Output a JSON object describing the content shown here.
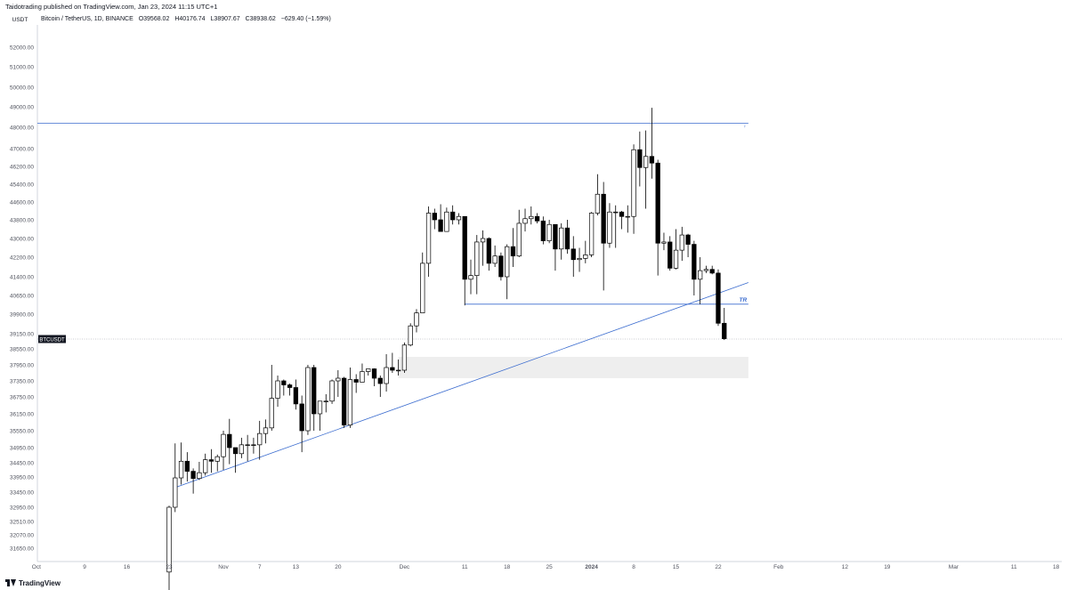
{
  "header": {
    "published": "Taidotrading published on TradingView.com, Jan 23, 2024 11:15 UTC+1",
    "pair_tag": "USDT",
    "symbol": "Bitcoin / TetherUS, 1D, BINANCE",
    "open": "O39568.02",
    "high": "H40176.74",
    "low": "L38907.67",
    "close": "C38938.62",
    "change": "−629.40 (−1.59%)"
  },
  "footer": {
    "brand": "TradingView"
  },
  "chart_data": {
    "type": "candlestick",
    "symbol_label": "BTCUSDT",
    "price_ticks": [
      {
        "v": 52000,
        "l": "52000.00"
      },
      {
        "v": 51000,
        "l": "51000.00"
      },
      {
        "v": 50000,
        "l": "50000.00"
      },
      {
        "v": 49000,
        "l": "49000.00"
      },
      {
        "v": 48000,
        "l": "48000.00"
      },
      {
        "v": 47000,
        "l": "47000.00"
      },
      {
        "v": 46200,
        "l": "46200.00"
      },
      {
        "v": 45400,
        "l": "45400.00"
      },
      {
        "v": 44600,
        "l": "44600.00"
      },
      {
        "v": 43800,
        "l": "43800.00"
      },
      {
        "v": 43000,
        "l": "43000.00"
      },
      {
        "v": 42200,
        "l": "42200.00"
      },
      {
        "v": 41400,
        "l": "41400.00"
      },
      {
        "v": 40650,
        "l": "40650.00"
      },
      {
        "v": 39900,
        "l": "39900.00"
      },
      {
        "v": 39150,
        "l": "39150.00"
      },
      {
        "v": 38550,
        "l": "38550.00"
      },
      {
        "v": 37950,
        "l": "37950.00"
      },
      {
        "v": 37350,
        "l": "37350.00"
      },
      {
        "v": 36750,
        "l": "36750.00"
      },
      {
        "v": 36150,
        "l": "36150.00"
      },
      {
        "v": 35550,
        "l": "35550.00"
      },
      {
        "v": 34950,
        "l": "34950.00"
      },
      {
        "v": 34450,
        "l": "34450.00"
      },
      {
        "v": 33950,
        "l": "33950.00"
      },
      {
        "v": 33450,
        "l": "33450.00"
      },
      {
        "v": 32950,
        "l": "32950.00"
      },
      {
        "v": 32510,
        "l": "32510.00"
      },
      {
        "v": 32070,
        "l": "32070.00"
      },
      {
        "v": 31650,
        "l": "31650.00"
      }
    ],
    "time_ticks": [
      {
        "d": "2023-10-01",
        "l": "Oct"
      },
      {
        "d": "2023-10-09",
        "l": "9"
      },
      {
        "d": "2023-10-16",
        "l": "16"
      },
      {
        "d": "2023-10-23",
        "l": "23"
      },
      {
        "d": "2023-11-01",
        "l": "Nov"
      },
      {
        "d": "2023-11-07",
        "l": "7"
      },
      {
        "d": "2023-11-13",
        "l": "13"
      },
      {
        "d": "2023-11-20",
        "l": "20"
      },
      {
        "d": "2023-12-01",
        "l": "Dec"
      },
      {
        "d": "2023-12-11",
        "l": "11"
      },
      {
        "d": "2023-12-18",
        "l": "18"
      },
      {
        "d": "2023-12-25",
        "l": "25"
      },
      {
        "d": "2024-01-01",
        "l": "2024"
      },
      {
        "d": "2024-01-08",
        "l": "8"
      },
      {
        "d": "2024-01-15",
        "l": "15"
      },
      {
        "d": "2024-01-22",
        "l": "22"
      },
      {
        "d": "2024-02-01",
        "l": "Feb"
      },
      {
        "d": "2024-02-12",
        "l": "12"
      },
      {
        "d": "2024-02-19",
        "l": "19"
      },
      {
        "d": "2024-03-01",
        "l": "Mar"
      },
      {
        "d": "2024-03-11",
        "l": "11"
      },
      {
        "d": "2024-03-18",
        "l": "18"
      }
    ],
    "last_price": 38938.62,
    "candles": [
      {
        "d": "2023-10-23",
        "o": 30900,
        "h": 33000,
        "l": 30300,
        "c": 32950
      },
      {
        "d": "2023-10-24",
        "o": 32950,
        "h": 35100,
        "l": 32800,
        "c": 33920
      },
      {
        "d": "2023-10-25",
        "o": 33920,
        "h": 35130,
        "l": 33700,
        "c": 34500
      },
      {
        "d": "2023-10-26",
        "o": 34500,
        "h": 34800,
        "l": 33800,
        "c": 34150
      },
      {
        "d": "2023-10-27",
        "o": 34150,
        "h": 34250,
        "l": 33400,
        "c": 33900
      },
      {
        "d": "2023-10-28",
        "o": 33900,
        "h": 34480,
        "l": 33850,
        "c": 34100
      },
      {
        "d": "2023-10-29",
        "o": 34100,
        "h": 34750,
        "l": 34000,
        "c": 34550
      },
      {
        "d": "2023-10-30",
        "o": 34550,
        "h": 34900,
        "l": 34100,
        "c": 34500
      },
      {
        "d": "2023-10-31",
        "o": 34500,
        "h": 34720,
        "l": 34150,
        "c": 34650
      },
      {
        "d": "2023-11-01",
        "o": 34650,
        "h": 35550,
        "l": 34200,
        "c": 35420
      },
      {
        "d": "2023-11-02",
        "o": 35420,
        "h": 35970,
        "l": 34400,
        "c": 34950
      },
      {
        "d": "2023-11-03",
        "o": 34950,
        "h": 34950,
        "l": 34100,
        "c": 34750
      },
      {
        "d": "2023-11-04",
        "o": 34750,
        "h": 35300,
        "l": 34600,
        "c": 35050
      },
      {
        "d": "2023-11-05",
        "o": 35050,
        "h": 35400,
        "l": 34500,
        "c": 35050
      },
      {
        "d": "2023-11-06",
        "o": 35050,
        "h": 35300,
        "l": 34750,
        "c": 35050
      },
      {
        "d": "2023-11-07",
        "o": 35050,
        "h": 35900,
        "l": 34550,
        "c": 35450
      },
      {
        "d": "2023-11-08",
        "o": 35450,
        "h": 35950,
        "l": 35100,
        "c": 35650
      },
      {
        "d": "2023-11-09",
        "o": 35650,
        "h": 37950,
        "l": 35550,
        "c": 36700
      },
      {
        "d": "2023-11-10",
        "o": 36700,
        "h": 37550,
        "l": 36400,
        "c": 37350
      },
      {
        "d": "2023-11-11",
        "o": 37350,
        "h": 37400,
        "l": 36800,
        "c": 37200
      },
      {
        "d": "2023-11-12",
        "o": 37200,
        "h": 37250,
        "l": 36800,
        "c": 37100
      },
      {
        "d": "2023-11-13",
        "o": 37100,
        "h": 37400,
        "l": 36300,
        "c": 36500
      },
      {
        "d": "2023-11-14",
        "o": 36500,
        "h": 36800,
        "l": 34800,
        "c": 35550
      },
      {
        "d": "2023-11-15",
        "o": 35550,
        "h": 37950,
        "l": 35400,
        "c": 37850
      },
      {
        "d": "2023-11-16",
        "o": 37850,
        "h": 37950,
        "l": 35550,
        "c": 36150
      },
      {
        "d": "2023-11-17",
        "o": 36150,
        "h": 36500,
        "l": 35550,
        "c": 36600
      },
      {
        "d": "2023-11-18",
        "o": 36600,
        "h": 36850,
        "l": 36200,
        "c": 36600
      },
      {
        "d": "2023-11-19",
        "o": 36600,
        "h": 37400,
        "l": 36500,
        "c": 37350
      },
      {
        "d": "2023-11-20",
        "o": 37350,
        "h": 37750,
        "l": 36750,
        "c": 37450
      },
      {
        "d": "2023-11-21",
        "o": 37450,
        "h": 37500,
        "l": 35650,
        "c": 35750
      },
      {
        "d": "2023-11-22",
        "o": 35750,
        "h": 37850,
        "l": 35650,
        "c": 37400
      },
      {
        "d": "2023-11-23",
        "o": 37400,
        "h": 37600,
        "l": 36900,
        "c": 37300
      },
      {
        "d": "2023-11-24",
        "o": 37300,
        "h": 38000,
        "l": 37300,
        "c": 37700
      },
      {
        "d": "2023-11-25",
        "o": 37700,
        "h": 37800,
        "l": 37550,
        "c": 37800
      },
      {
        "d": "2023-11-26",
        "o": 37800,
        "h": 37820,
        "l": 37150,
        "c": 37450
      },
      {
        "d": "2023-11-27",
        "o": 37450,
        "h": 37550,
        "l": 36750,
        "c": 37250
      },
      {
        "d": "2023-11-28",
        "o": 37250,
        "h": 38350,
        "l": 36950,
        "c": 37850
      },
      {
        "d": "2023-11-29",
        "o": 37850,
        "h": 38400,
        "l": 37650,
        "c": 37750
      },
      {
        "d": "2023-11-30",
        "o": 37750,
        "h": 38150,
        "l": 37550,
        "c": 37750
      },
      {
        "d": "2023-12-01",
        "o": 37750,
        "h": 38800,
        "l": 37650,
        "c": 38700
      },
      {
        "d": "2023-12-02",
        "o": 38700,
        "h": 39550,
        "l": 38650,
        "c": 39450
      },
      {
        "d": "2023-12-03",
        "o": 39450,
        "h": 40100,
        "l": 39200,
        "c": 39950
      },
      {
        "d": "2023-12-04",
        "o": 39950,
        "h": 42400,
        "l": 39950,
        "c": 41950
      },
      {
        "d": "2023-12-05",
        "o": 41950,
        "h": 44400,
        "l": 41400,
        "c": 44100
      },
      {
        "d": "2023-12-06",
        "o": 44100,
        "h": 44300,
        "l": 43400,
        "c": 43800
      },
      {
        "d": "2023-12-07",
        "o": 43800,
        "h": 44500,
        "l": 43400,
        "c": 43300
      },
      {
        "d": "2023-12-08",
        "o": 43300,
        "h": 44350,
        "l": 43300,
        "c": 44150
      },
      {
        "d": "2023-12-09",
        "o": 44150,
        "h": 44450,
        "l": 43600,
        "c": 43800
      },
      {
        "d": "2023-12-10",
        "o": 43800,
        "h": 44100,
        "l": 43600,
        "c": 43950
      },
      {
        "d": "2023-12-11",
        "o": 43950,
        "h": 43950,
        "l": 40250,
        "c": 41300
      },
      {
        "d": "2023-12-12",
        "o": 41300,
        "h": 42100,
        "l": 40700,
        "c": 41450
      },
      {
        "d": "2023-12-13",
        "o": 41450,
        "h": 43150,
        "l": 40700,
        "c": 42850
      },
      {
        "d": "2023-12-14",
        "o": 42850,
        "h": 43350,
        "l": 41850,
        "c": 43000
      },
      {
        "d": "2023-12-15",
        "o": 43000,
        "h": 43050,
        "l": 41650,
        "c": 41950
      },
      {
        "d": "2023-12-16",
        "o": 41950,
        "h": 42700,
        "l": 41800,
        "c": 42250
      },
      {
        "d": "2023-12-17",
        "o": 42250,
        "h": 42400,
        "l": 41250,
        "c": 41400
      },
      {
        "d": "2023-12-18",
        "o": 41400,
        "h": 42750,
        "l": 40500,
        "c": 42650
      },
      {
        "d": "2023-12-19",
        "o": 42650,
        "h": 43450,
        "l": 41800,
        "c": 42250
      },
      {
        "d": "2023-12-20",
        "o": 42250,
        "h": 44250,
        "l": 42200,
        "c": 43650
      },
      {
        "d": "2023-12-21",
        "o": 43650,
        "h": 44300,
        "l": 43300,
        "c": 43850
      },
      {
        "d": "2023-12-22",
        "o": 43850,
        "h": 44400,
        "l": 43600,
        "c": 43950
      },
      {
        "d": "2023-12-23",
        "o": 43950,
        "h": 44100,
        "l": 43650,
        "c": 43750
      },
      {
        "d": "2023-12-24",
        "o": 43750,
        "h": 43950,
        "l": 42750,
        "c": 42900
      },
      {
        "d": "2023-12-25",
        "o": 42900,
        "h": 43800,
        "l": 42800,
        "c": 43600
      },
      {
        "d": "2023-12-26",
        "o": 43600,
        "h": 43600,
        "l": 41650,
        "c": 42550
      },
      {
        "d": "2023-12-27",
        "o": 42550,
        "h": 43650,
        "l": 42100,
        "c": 43450
      },
      {
        "d": "2023-12-28",
        "o": 43450,
        "h": 43800,
        "l": 42350,
        "c": 42550
      },
      {
        "d": "2023-12-29",
        "o": 42550,
        "h": 43100,
        "l": 41400,
        "c": 42100
      },
      {
        "d": "2023-12-30",
        "o": 42100,
        "h": 42600,
        "l": 41600,
        "c": 42150
      },
      {
        "d": "2023-12-31",
        "o": 42150,
        "h": 42900,
        "l": 41950,
        "c": 42300
      },
      {
        "d": "2024-01-01",
        "o": 42300,
        "h": 44150,
        "l": 42200,
        "c": 44100
      },
      {
        "d": "2024-01-02",
        "o": 44100,
        "h": 45850,
        "l": 44000,
        "c": 44950
      },
      {
        "d": "2024-01-03",
        "o": 44950,
        "h": 45500,
        "l": 40850,
        "c": 42800
      },
      {
        "d": "2024-01-04",
        "o": 42800,
        "h": 44550,
        "l": 42600,
        "c": 44150
      },
      {
        "d": "2024-01-05",
        "o": 44150,
        "h": 44450,
        "l": 42600,
        "c": 44150
      },
      {
        "d": "2024-01-06",
        "o": 44150,
        "h": 44200,
        "l": 43400,
        "c": 43950
      },
      {
        "d": "2024-01-07",
        "o": 43950,
        "h": 44450,
        "l": 43250,
        "c": 43950
      },
      {
        "d": "2024-01-08",
        "o": 43950,
        "h": 47200,
        "l": 43200,
        "c": 46950
      },
      {
        "d": "2024-01-09",
        "o": 46950,
        "h": 47800,
        "l": 45300,
        "c": 46150
      },
      {
        "d": "2024-01-10",
        "o": 46150,
        "h": 47850,
        "l": 44300,
        "c": 46650
      },
      {
        "d": "2024-01-11",
        "o": 46650,
        "h": 48950,
        "l": 45650,
        "c": 46350
      },
      {
        "d": "2024-01-12",
        "o": 46350,
        "h": 46500,
        "l": 41450,
        "c": 42800
      },
      {
        "d": "2024-01-13",
        "o": 42800,
        "h": 43250,
        "l": 42500,
        "c": 42850
      },
      {
        "d": "2024-01-14",
        "o": 42850,
        "h": 43100,
        "l": 41650,
        "c": 41750
      },
      {
        "d": "2024-01-15",
        "o": 41750,
        "h": 43400,
        "l": 41700,
        "c": 42500
      },
      {
        "d": "2024-01-16",
        "o": 42500,
        "h": 43500,
        "l": 42050,
        "c": 43150
      },
      {
        "d": "2024-01-17",
        "o": 43150,
        "h": 43200,
        "l": 42200,
        "c": 42750
      },
      {
        "d": "2024-01-18",
        "o": 42750,
        "h": 42900,
        "l": 40650,
        "c": 41300
      },
      {
        "d": "2024-01-19",
        "o": 41300,
        "h": 42200,
        "l": 40300,
        "c": 41650
      },
      {
        "d": "2024-01-20",
        "o": 41650,
        "h": 41850,
        "l": 41550,
        "c": 41700
      },
      {
        "d": "2024-01-21",
        "o": 41700,
        "h": 41850,
        "l": 41500,
        "c": 41550
      },
      {
        "d": "2024-01-22",
        "o": 41550,
        "h": 41700,
        "l": 39450,
        "c": 39550
      },
      {
        "d": "2024-01-23",
        "o": 39550,
        "h": 40150,
        "l": 38900,
        "c": 38950
      }
    ],
    "drawings": {
      "resistance_level": {
        "price": 48200,
        "from": "2023-10-01",
        "to": "2024-01-27",
        "marker": "ꜛ"
      },
      "range_low_line": {
        "price": 40300,
        "from": "2023-12-11",
        "to": "2024-01-27",
        "label": "TR"
      },
      "trend_line": {
        "from": {
          "d": "2023-10-24",
          "price": 33600
        },
        "to": {
          "d": "2024-01-27",
          "price": 41170
        }
      },
      "demand_zone": {
        "from": "2023-11-30",
        "to": "2024-01-27",
        "top": 38250,
        "bottom": 37450
      }
    },
    "colors": {
      "up_fill": "#ffffff",
      "down_fill": "#000000",
      "wick": "#000000",
      "line": "#3b6ccf",
      "zone": "#eeeeee",
      "grid": "#e9ebf0"
    }
  }
}
